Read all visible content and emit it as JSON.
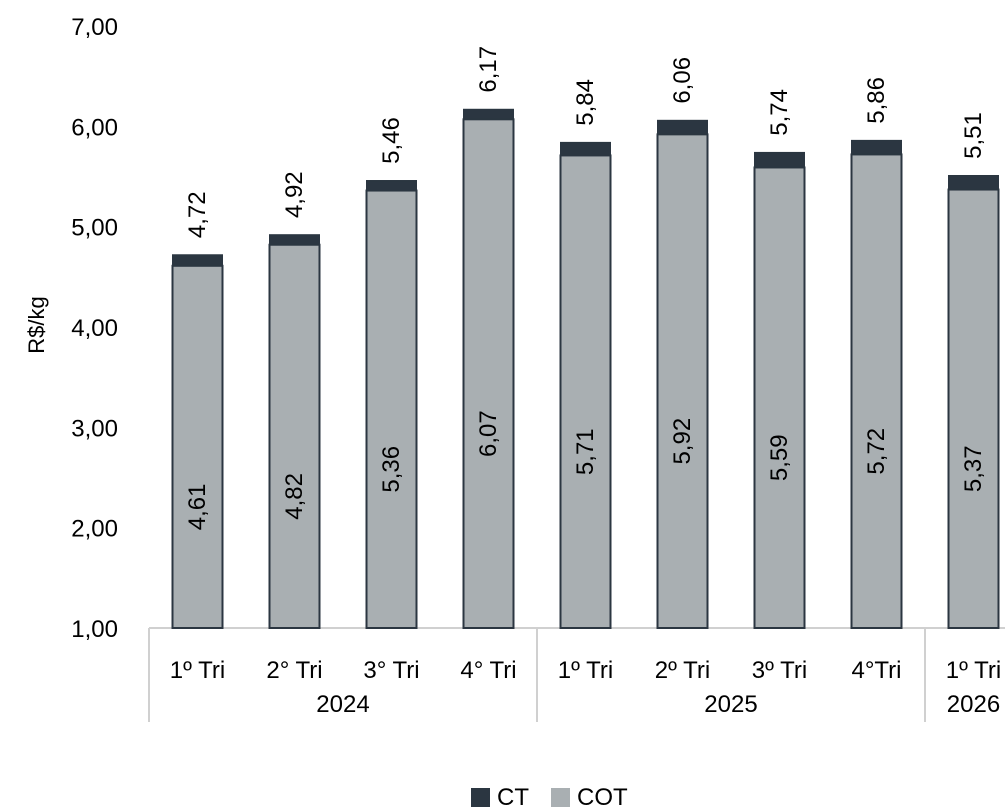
{
  "chart_data": {
    "type": "bar",
    "stacked": true,
    "ylabel": "R$/kg",
    "ylim": [
      1.0,
      7.0
    ],
    "yticks": [
      "1,00",
      "2,00",
      "3,00",
      "4,00",
      "5,00",
      "6,00",
      "7,00"
    ],
    "categories": [
      "1º Tri",
      "2° Tri",
      "3° Tri",
      "4° Tri",
      "1º Tri",
      "2º Tri",
      "3º Tri",
      "4°Tri",
      "1º Tri"
    ],
    "groups": [
      {
        "label": "2024",
        "count": 4
      },
      {
        "label": "2025",
        "count": 4
      },
      {
        "label": "2026",
        "count": 1
      }
    ],
    "series": [
      {
        "name": "COT",
        "color": "#a9afb2",
        "values": [
          4.61,
          4.82,
          5.36,
          6.07,
          5.71,
          5.92,
          5.59,
          5.72,
          5.37
        ],
        "labels": [
          "4,61",
          "4,82",
          "5,36",
          "6,07",
          "5,71",
          "5,92",
          "5,59",
          "5,72",
          "5,37"
        ]
      },
      {
        "name": "CT",
        "color": "#2b3641",
        "totals": [
          4.72,
          4.92,
          5.46,
          6.17,
          5.84,
          6.06,
          5.74,
          5.86,
          5.51
        ],
        "labels": [
          "4,72",
          "4,92",
          "5,46",
          "6,17",
          "5,84",
          "6,06",
          "5,74",
          "5,86",
          "5,51"
        ]
      }
    ],
    "legend": {
      "position": "bottom",
      "entries": [
        "CT",
        "COT"
      ]
    }
  }
}
